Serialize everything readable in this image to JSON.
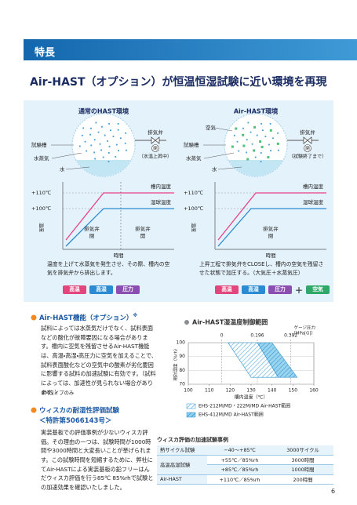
{
  "header": {
    "label": "特長"
  },
  "title": "Air-HAST（オプション）が恒温恒湿試験に近い環境を再現",
  "diagram": {
    "panels": [
      {
        "title": "通常のHAST環境",
        "chamber": "試験槽",
        "steam": "水蒸気",
        "water": "水",
        "valve": "排気弁",
        "valve_state": "閉",
        "valve_note": "（水温上昇中）",
        "t110": "+110℃",
        "t100": "+100℃",
        "chamber_temp": "槽内温度",
        "wet_bulb": "湿球温度",
        "y_label": "温度",
        "x_label": "時間",
        "phases": [
          [
            "排気弁",
            "閉"
          ],
          [
            "排気弁",
            "開"
          ]
        ],
        "description": "温度を上げて水蒸気を発生させ、その際、槽内の空気を排気弁から排出します。",
        "tags": [
          "高温",
          "高湿",
          "圧力"
        ]
      },
      {
        "title": "Air-HAST環境",
        "air": "空気",
        "chamber": "試験槽",
        "steam": "水蒸気",
        "water": "水",
        "valve": "排気弁",
        "valve_state": "閉",
        "valve_note": "（試験終了まで）",
        "t110": "+110℃",
        "t100": "+100℃",
        "chamber_temp": "槽内温度",
        "wet_bulb": "湿球温度",
        "y_label": "温度",
        "x_label": "時間",
        "phases": [
          [
            "排気弁",
            "閉"
          ]
        ],
        "description": "上昇工程で排気弁をCLOSEし、槽内の空気を残留させた状態で加圧する。（大気圧＋水蒸気圧）",
        "tags": [
          "高温",
          "高湿",
          "圧力"
        ],
        "plus": "＋",
        "extra_tag": "空気"
      }
    ]
  },
  "section1": {
    "heading": "Air-HAST機能（オプション）",
    "mark": "※",
    "body": "試料によっては水蒸気だけでなく、試料表面などの酸化が故障要因になる場合があります。槽内に空気を残留させるAir-HAST機能は、高温・高湿・高圧力に空気を加えることで、試料表面酸化などの空気中の酸素が劣化要因に影響する試料の加速試験に有効です。（試料によっては、加速性が見られない場合があります。）",
    "note": "※Mタイプのみ"
  },
  "section2": {
    "heading": "ウィスカの耐湿性評価試験",
    "patent": "＜特許第5066143号＞",
    "body": "実装基板での評価事例が少ないウィスカ評価。その理由の一つは、試験時間が1000時間や3000時間と大変長いことが挙げられます。この試験時間を短縮するために、弊社にてAir-HASTによる実装基板の鉛フリーはんだウィスカ評価を行う85℃ 85%rhで試験との加速効果を確認いたしました。"
  },
  "chart_data": {
    "type": "area",
    "title": "Air-HAST湿温度制御範囲",
    "x_label": "槽内温度（℃）",
    "y_label": "相対湿度（%rh）",
    "top_label": [
      "ゲージ圧力",
      "（MPa[G]）"
    ],
    "xlim": [
      100,
      160
    ],
    "xticks": [
      100,
      110,
      120,
      130,
      140,
      150,
      160
    ],
    "ylim": [
      70,
      100
    ],
    "yticks": [
      70,
      80,
      90,
      100
    ],
    "grid": true,
    "pressure_ticks": [
      {
        "value": 0,
        "x": 116
      },
      {
        "value": 0.196,
        "x": 133
      },
      {
        "value": 0.392,
        "x": 149
      }
    ],
    "series": [
      {
        "name": "EHS-212M/MD・222M/MD Air-HAST範囲",
        "fill": "hatch1",
        "x": [
          119,
          133,
          143,
          130
        ],
        "values": [
          100,
          100,
          75,
          75
        ]
      },
      {
        "name": "EHS-412M/MD Air-HAST範囲",
        "fill": "hatch2",
        "x": [
          133,
          140,
          152,
          143
        ],
        "values": [
          100,
          100,
          75,
          75
        ]
      }
    ]
  },
  "table": {
    "title": "ウィスカ評価の加速試験事例",
    "groups": [
      {
        "name": "熱サイクル試験",
        "rows": [
          [
            "−40〜+85℃",
            "3000サイクル"
          ]
        ]
      },
      {
        "name": "高温高湿試験",
        "rows": [
          [
            "+55℃／85%rh",
            "3000時間"
          ],
          [
            "+85℃／85%rh",
            "1000時間"
          ]
        ]
      },
      {
        "name": "Air-HAST",
        "rows": [
          [
            "+110℃／85%rh",
            "200時間"
          ]
        ]
      }
    ]
  },
  "page_number": "6"
}
